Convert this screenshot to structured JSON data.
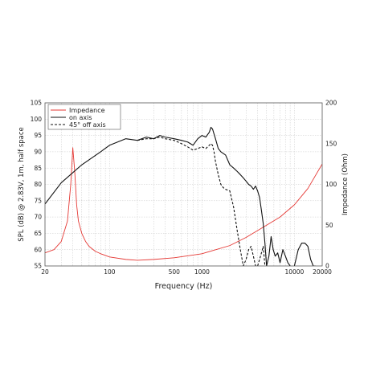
{
  "chart_data": {
    "type": "line",
    "xlabel": "Frequency (Hz)",
    "ylabel_left": "SPL (dB) @ 2.83V, 1m, half space",
    "ylabel_right": "Impedance (Ohm)",
    "x_scale": "log",
    "xlim": [
      20,
      20000
    ],
    "ylim_left": [
      55,
      105
    ],
    "ylim_right": [
      0,
      200
    ],
    "grid": true,
    "legend_position": "top-left",
    "x_tick_labels": [
      "20",
      "100",
      "500",
      "1000",
      "10000",
      "20000"
    ],
    "x_tick_values": [
      20,
      100,
      500,
      1000,
      10000,
      20000
    ],
    "y_left_ticks": [
      55,
      60,
      65,
      70,
      75,
      80,
      85,
      90,
      95,
      100,
      105
    ],
    "y_right_ticks": [
      0,
      50,
      100,
      150,
      200
    ],
    "series": [
      {
        "name": "Impedance",
        "axis": "right",
        "color": "#e53935",
        "dash": "solid",
        "x": [
          20,
          25,
          30,
          35,
          38,
          40,
          42,
          44,
          46,
          50,
          55,
          60,
          70,
          80,
          100,
          150,
          200,
          300,
          500,
          1000,
          2000,
          3000,
          5000,
          7000,
          10000,
          14000,
          20000
        ],
        "y": [
          16,
          20,
          30,
          55,
          100,
          145,
          115,
          75,
          55,
          40,
          30,
          24,
          18,
          15,
          11,
          8,
          7,
          8,
          10,
          15,
          25,
          35,
          50,
          60,
          75,
          95,
          125
        ]
      },
      {
        "name": "on axis",
        "axis": "left",
        "color": "#111111",
        "dash": "solid",
        "x": [
          20,
          30,
          50,
          80,
          100,
          150,
          200,
          250,
          300,
          350,
          400,
          500,
          600,
          700,
          800,
          900,
          1000,
          1100,
          1200,
          1250,
          1300,
          1400,
          1500,
          1600,
          1800,
          2000,
          2200,
          2400,
          2600,
          2800,
          3000,
          3200,
          3400,
          3600,
          3800,
          4000,
          4200,
          4400,
          4600,
          4800,
          5000,
          5300,
          5600,
          5900,
          6200,
          6600,
          7000,
          7500,
          8000,
          8500,
          9000,
          9500,
          10000,
          11000,
          12000,
          13000,
          14000,
          15000,
          16000,
          17000
        ],
        "y": [
          74,
          80.5,
          86,
          90,
          92,
          94,
          93.5,
          94.5,
          94,
          95,
          94.5,
          94,
          93.5,
          93,
          92,
          94,
          95,
          94.5,
          96,
          97.5,
          97,
          94,
          91,
          90,
          89,
          86,
          85,
          84,
          83,
          82,
          81,
          80,
          79.5,
          78.5,
          79.5,
          78,
          76,
          72,
          68,
          62,
          55,
          58,
          64,
          60,
          58,
          59,
          56,
          60,
          58,
          56,
          55,
          53,
          55,
          60,
          62,
          62,
          61,
          57,
          55,
          55
        ]
      },
      {
        "name": "45° off axis",
        "axis": "left",
        "color": "#111111",
        "dash": "dashed",
        "x": [
          200,
          250,
          300,
          350,
          400,
          500,
          600,
          700,
          800,
          900,
          1000,
          1100,
          1200,
          1250,
          1300,
          1350,
          1400,
          1500,
          1600,
          1700,
          1800,
          2000,
          2200,
          2400,
          2600,
          2800,
          3000,
          3200,
          3400,
          3600,
          3800,
          4000,
          4200,
          4400,
          4600,
          4800
        ],
        "y": [
          93.5,
          94,
          94,
          94.5,
          94,
          93.5,
          92.5,
          91.5,
          90.5,
          91,
          91.5,
          91,
          92,
          92.5,
          92,
          90,
          87,
          83,
          80,
          79,
          78.5,
          78,
          73,
          66,
          60,
          55,
          57,
          60,
          61,
          58,
          55,
          55,
          57,
          59,
          61,
          55
        ]
      }
    ]
  }
}
